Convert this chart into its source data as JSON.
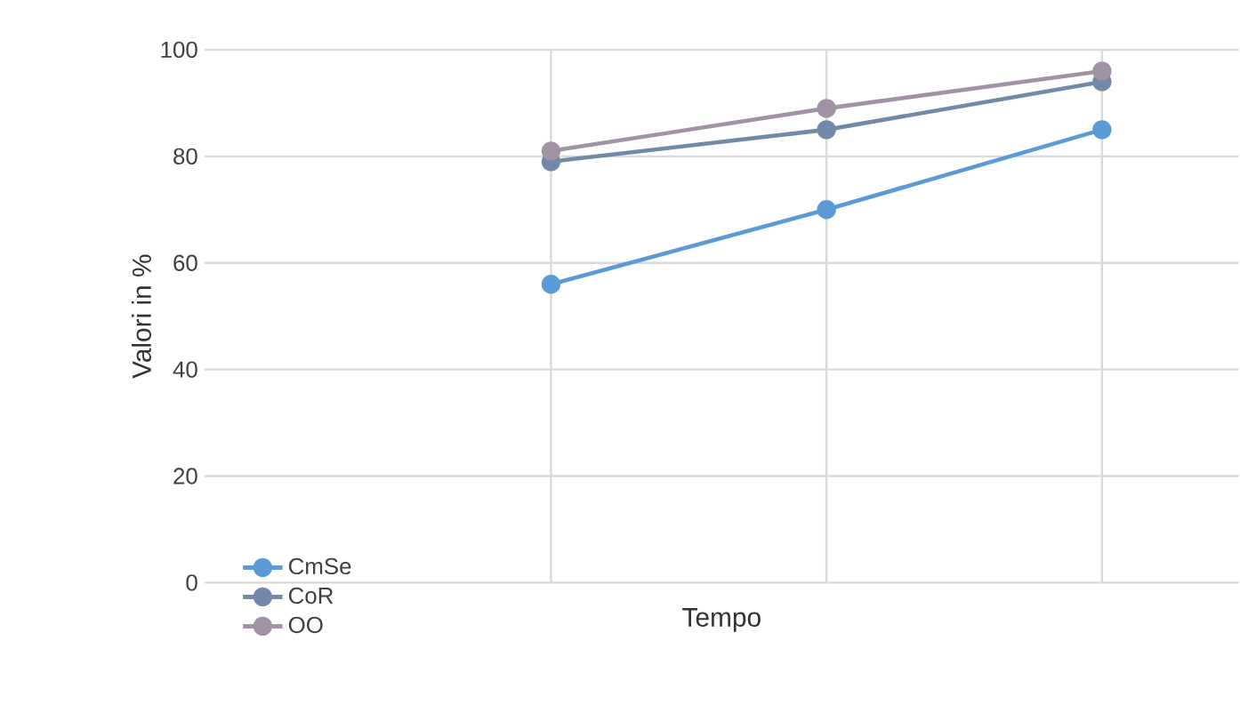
{
  "chart_data": {
    "type": "line",
    "xlabel": "Tempo",
    "ylabel": "Valori in %",
    "categories": [
      null,
      null,
      null
    ],
    "series": [
      {
        "name": "CmSe",
        "color": "#5b9bd5",
        "values": [
          56,
          70,
          85
        ]
      },
      {
        "name": "CoR",
        "color": "#7289a9",
        "values": [
          79,
          85,
          94
        ]
      },
      {
        "name": "OO",
        "color": "#a093a3",
        "values": [
          81,
          89,
          96
        ]
      }
    ],
    "ylim": [
      0,
      100
    ],
    "yticks": [
      0,
      20,
      40,
      60,
      80,
      100
    ],
    "grid": true,
    "legend": "bottom left",
    "marker": "circle",
    "line_style": "solid"
  }
}
